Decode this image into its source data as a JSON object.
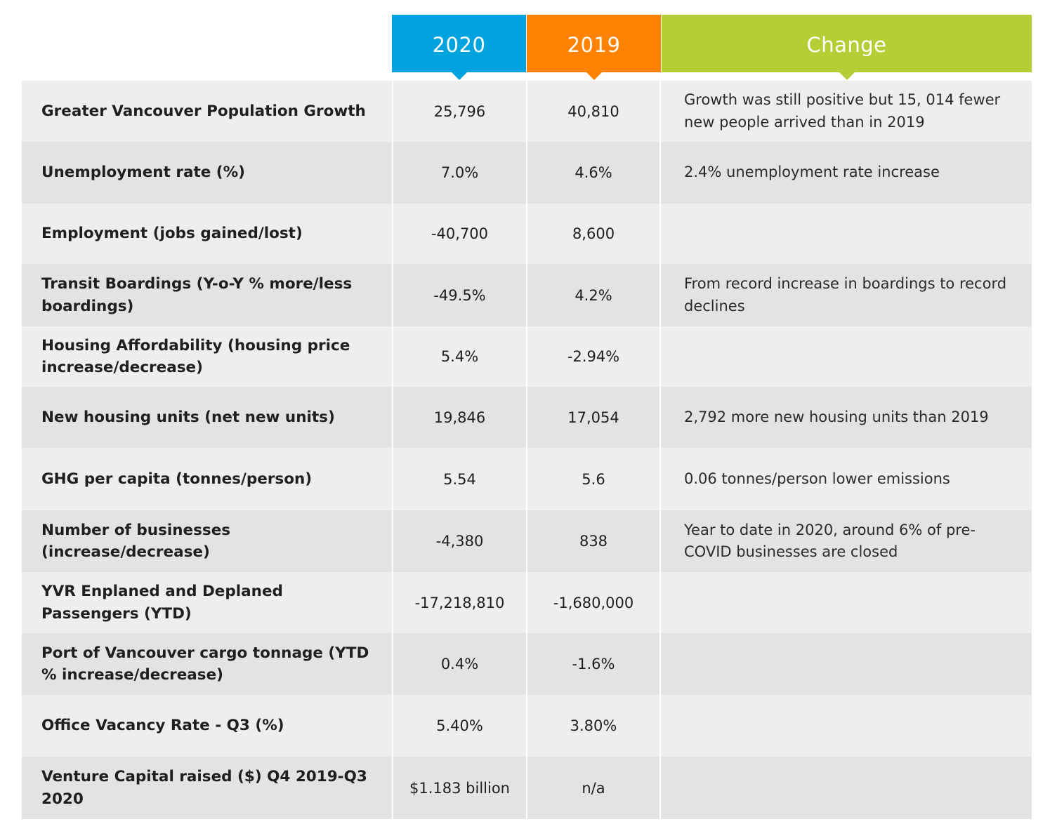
{
  "header": {
    "col_2020": "2020",
    "col_2019": "2019",
    "col_change": "Change"
  },
  "colors": {
    "col_2020": "#00a3dd",
    "col_2019": "#ff8200",
    "col_change": "#b7cd35",
    "row_light": "#efeeef",
    "row_dark": "#e3e3e4"
  },
  "rows": [
    {
      "label": "Greater Vancouver Population Growth",
      "v2020": "25,796",
      "v2019": "40,810",
      "change": "Growth was still positive but 15, 014 fewer new people arrived than in 2019"
    },
    {
      "label": "Unemployment rate (%)",
      "v2020": "7.0%",
      "v2019": "4.6%",
      "change": "2.4% unemployment rate increase"
    },
    {
      "label": "Employment (jobs gained/lost)",
      "v2020": "-40,700",
      "v2019": "8,600",
      "change": ""
    },
    {
      "label": "Transit Boardings (Y-o-Y % more/less boardings)",
      "v2020": "-49.5%",
      "v2019": "4.2%",
      "change": "From record increase in boardings to record declines"
    },
    {
      "label": "Housing Affordability (housing price increase/decrease)",
      "v2020": "5.4%",
      "v2019": "-2.94%",
      "change": ""
    },
    {
      "label": "New housing units (net new units)",
      "v2020": "19,846",
      "v2019": "17,054",
      "change": "2,792 more new housing units than 2019"
    },
    {
      "label": "GHG per capita (tonnes/person)",
      "v2020": "5.54",
      "v2019": "5.6",
      "change": "0.06 tonnes/person lower emissions"
    },
    {
      "label": "Number of businesses (increase/decrease)",
      "v2020": "-4,380",
      "v2019": "838",
      "change": "Year to date in 2020, around 6% of pre-COVID businesses are closed"
    },
    {
      "label": "YVR Enplaned and Deplaned Passengers (YTD)",
      "v2020": "-17,218,810",
      "v2019": "-1,680,000",
      "change": ""
    },
    {
      "label": "Port of Vancouver cargo tonnage (YTD % increase/decrease)",
      "v2020": "0.4%",
      "v2019": "-1.6%",
      "change": ""
    },
    {
      "label": "Office Vacancy Rate - Q3 (%)",
      "v2020": "5.40%",
      "v2019": "3.80%",
      "change": ""
    },
    {
      "label": "Venture Capital raised ($) Q4 2019-Q3 2020",
      "v2020": "$1.183 billion",
      "v2019": "n/a",
      "change": ""
    }
  ]
}
